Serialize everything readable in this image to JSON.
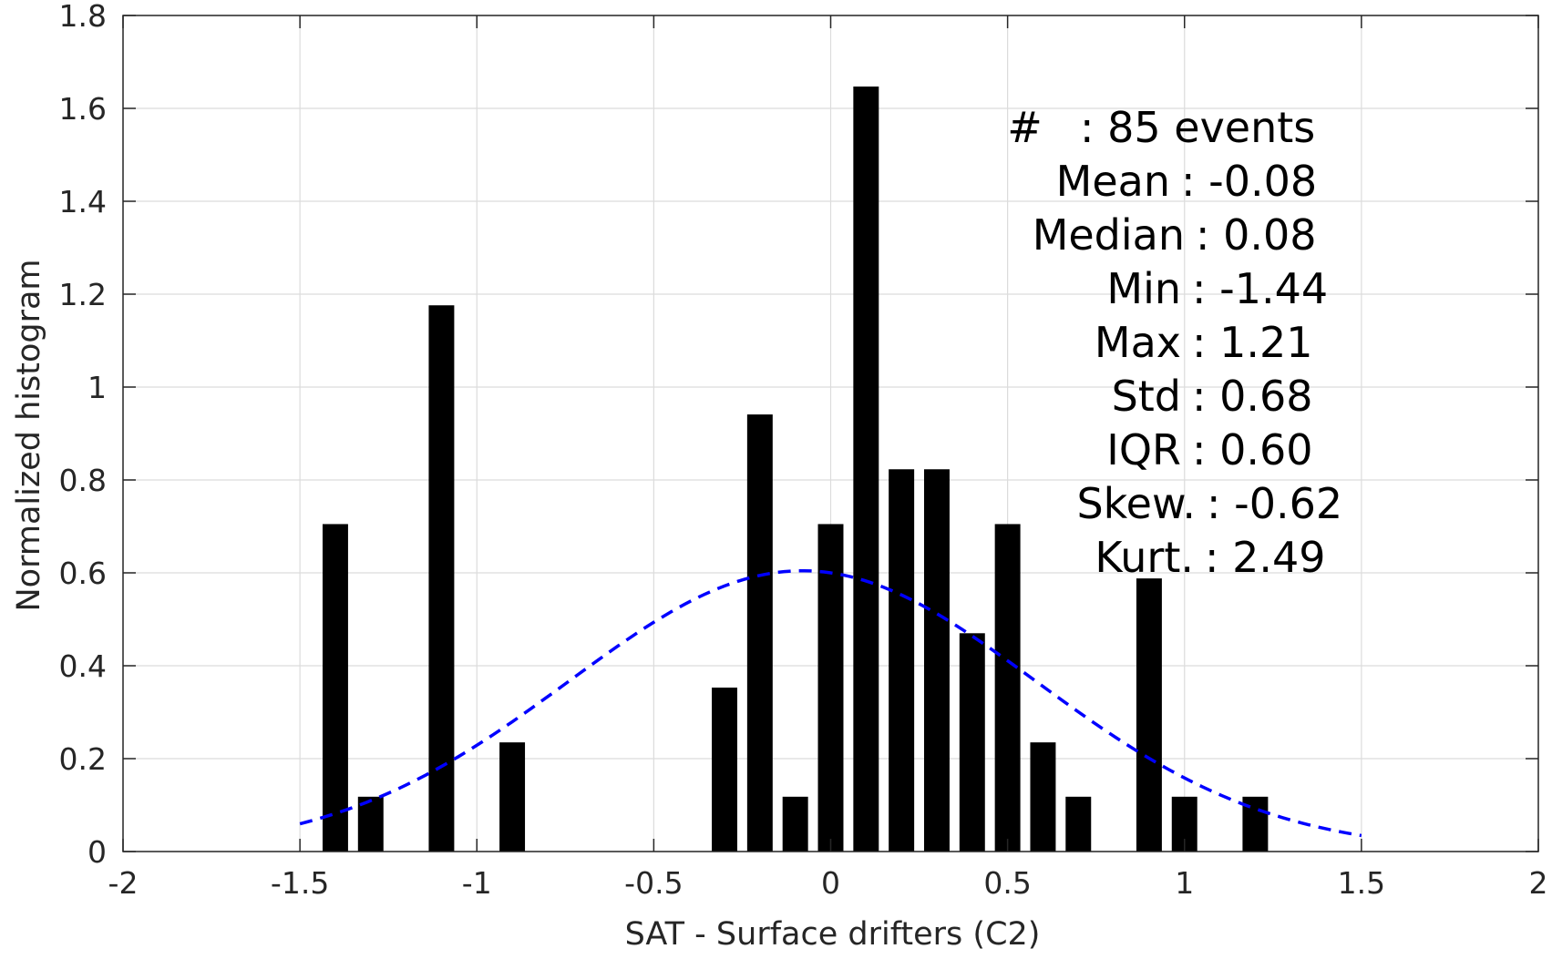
{
  "chart_data": {
    "type": "bar",
    "xlabel": "SAT - Surface drifters (C2)",
    "ylabel": "Normalized histogram",
    "xlim": [
      -2,
      2
    ],
    "ylim": [
      0,
      1.8
    ],
    "xticks": [
      "-2",
      "-1.5",
      "-1",
      "-0.5",
      "0",
      "0.5",
      "1",
      "1.5",
      "2"
    ],
    "yticks": [
      "0",
      "0.2",
      "0.4",
      "0.6",
      "0.8",
      "1",
      "1.2",
      "1.4",
      "1.6",
      "1.8"
    ],
    "grid": true,
    "bar_color": "#000000",
    "bin_width": 0.1,
    "bars": [
      {
        "x": -1.4,
        "y": 0.705
      },
      {
        "x": -1.3,
        "y": 0.118
      },
      {
        "x": -1.1,
        "y": 1.176
      },
      {
        "x": -0.9,
        "y": 0.235
      },
      {
        "x": -0.3,
        "y": 0.353
      },
      {
        "x": -0.2,
        "y": 0.941
      },
      {
        "x": -0.1,
        "y": 0.118
      },
      {
        "x": 0.0,
        "y": 0.705
      },
      {
        "x": 0.1,
        "y": 1.647
      },
      {
        "x": 0.2,
        "y": 0.823
      },
      {
        "x": 0.3,
        "y": 0.823
      },
      {
        "x": 0.4,
        "y": 0.47
      },
      {
        "x": 0.5,
        "y": 0.705
      },
      {
        "x": 0.6,
        "y": 0.235
      },
      {
        "x": 0.7,
        "y": 0.118
      },
      {
        "x": 0.9,
        "y": 0.588
      },
      {
        "x": 1.0,
        "y": 0.118
      },
      {
        "x": 1.2,
        "y": 0.118
      }
    ],
    "fit_curve": {
      "style": "dashed",
      "color": "#0000ff",
      "mean": -0.08,
      "std": 0.66,
      "x_range": [
        -1.5,
        1.5
      ]
    },
    "stats": [
      {
        "label": "#  ",
        "value": ": 85 events"
      },
      {
        "label": "Mean",
        "value": ": -0.08"
      },
      {
        "label": "Median",
        "value": ": 0.08"
      },
      {
        "label": "Min",
        "value": ": -1.44"
      },
      {
        "label": "Max",
        "value": ": 1.21"
      },
      {
        "label": "Std",
        "value": ": 0.68"
      },
      {
        "label": "IQR",
        "value": ": 0.60"
      },
      {
        "label": "Skew.",
        "value": ": -0.62"
      },
      {
        "label": "Kurt.",
        "value": ": 2.49"
      }
    ]
  }
}
